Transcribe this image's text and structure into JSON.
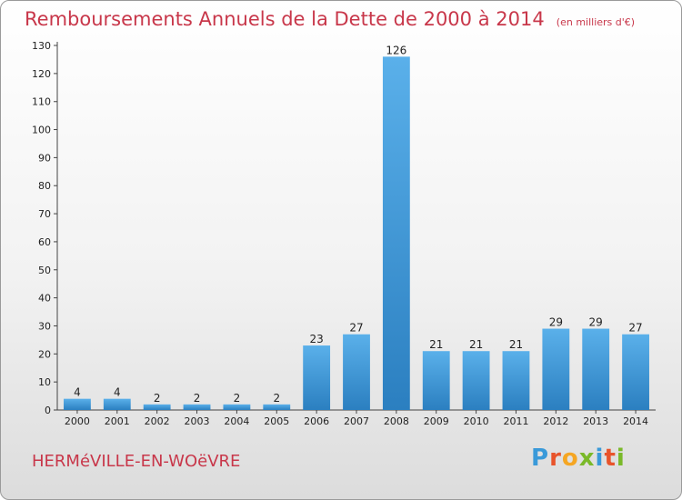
{
  "chart_data": {
    "type": "bar",
    "title": "Remboursements Annuels de la Dette de 2000 à 2014",
    "subtitle": "(en milliers d'€)",
    "categories": [
      "2000",
      "2001",
      "2002",
      "2003",
      "2004",
      "2005",
      "2006",
      "2007",
      "2008",
      "2009",
      "2010",
      "2011",
      "2012",
      "2013",
      "2014"
    ],
    "values": [
      4,
      4,
      2,
      2,
      2,
      2,
      23,
      27,
      126,
      21,
      21,
      21,
      29,
      29,
      27
    ],
    "ylim": [
      0,
      130
    ],
    "yticks": [
      0,
      10,
      20,
      30,
      40,
      50,
      60,
      70,
      80,
      90,
      100,
      110,
      120,
      130
    ],
    "grid": false,
    "bar_color": "#3d97d8",
    "xlabel": "",
    "ylabel": ""
  },
  "commune": "HERMéVILLE-EN-WOëVRE",
  "logo": {
    "text": "Proxiti",
    "letter_colors": [
      "#3a9ad9",
      "#e8542b",
      "#f5a623",
      "#7ab929",
      "#3a9ad9",
      "#e8542b",
      "#7ab929"
    ]
  },
  "accent_color": "#c8374a"
}
